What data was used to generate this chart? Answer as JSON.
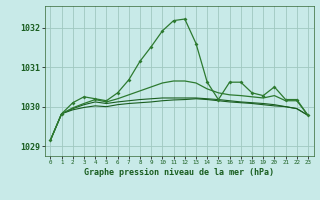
{
  "background_color": "#c8eae8",
  "grid_color": "#a0c8c0",
  "line_color_dark": "#1a5e20",
  "line_color_medium": "#2d7a30",
  "ylim": [
    1028.75,
    1032.55
  ],
  "yticks": [
    1029,
    1030,
    1031,
    1032
  ],
  "xlim": [
    -0.5,
    23.5
  ],
  "xticks": [
    0,
    1,
    2,
    3,
    4,
    5,
    6,
    7,
    8,
    9,
    10,
    11,
    12,
    13,
    14,
    15,
    16,
    17,
    18,
    19,
    20,
    21,
    22,
    23
  ],
  "series_spiky": [
    1029.15,
    1029.82,
    1030.1,
    1030.25,
    1030.2,
    1030.15,
    1030.35,
    1030.68,
    1031.15,
    1031.52,
    1031.92,
    1032.18,
    1032.22,
    1031.6,
    1030.62,
    1030.18,
    1030.62,
    1030.62,
    1030.35,
    1030.28,
    1030.5,
    1030.18,
    1030.18,
    1029.78
  ],
  "series_flat1": [
    1029.15,
    1029.82,
    1029.92,
    1029.98,
    1030.02,
    1030.0,
    1030.05,
    1030.08,
    1030.1,
    1030.12,
    1030.15,
    1030.17,
    1030.18,
    1030.2,
    1030.18,
    1030.15,
    1030.12,
    1030.1,
    1030.08,
    1030.05,
    1030.02,
    1030.0,
    1029.95,
    1029.78
  ],
  "series_flat2": [
    1029.15,
    1029.82,
    1029.95,
    1030.05,
    1030.12,
    1030.08,
    1030.12,
    1030.15,
    1030.18,
    1030.2,
    1030.22,
    1030.22,
    1030.22,
    1030.22,
    1030.2,
    1030.18,
    1030.15,
    1030.12,
    1030.1,
    1030.08,
    1030.05,
    1030.0,
    1029.95,
    1029.78
  ],
  "series_flat3": [
    1029.15,
    1029.82,
    1029.97,
    1030.08,
    1030.18,
    1030.12,
    1030.2,
    1030.3,
    1030.4,
    1030.5,
    1030.6,
    1030.65,
    1030.65,
    1030.6,
    1030.45,
    1030.35,
    1030.3,
    1030.28,
    1030.25,
    1030.22,
    1030.28,
    1030.15,
    1030.15,
    1029.78
  ],
  "xlabel": "Graphe pression niveau de la mer (hPa)"
}
